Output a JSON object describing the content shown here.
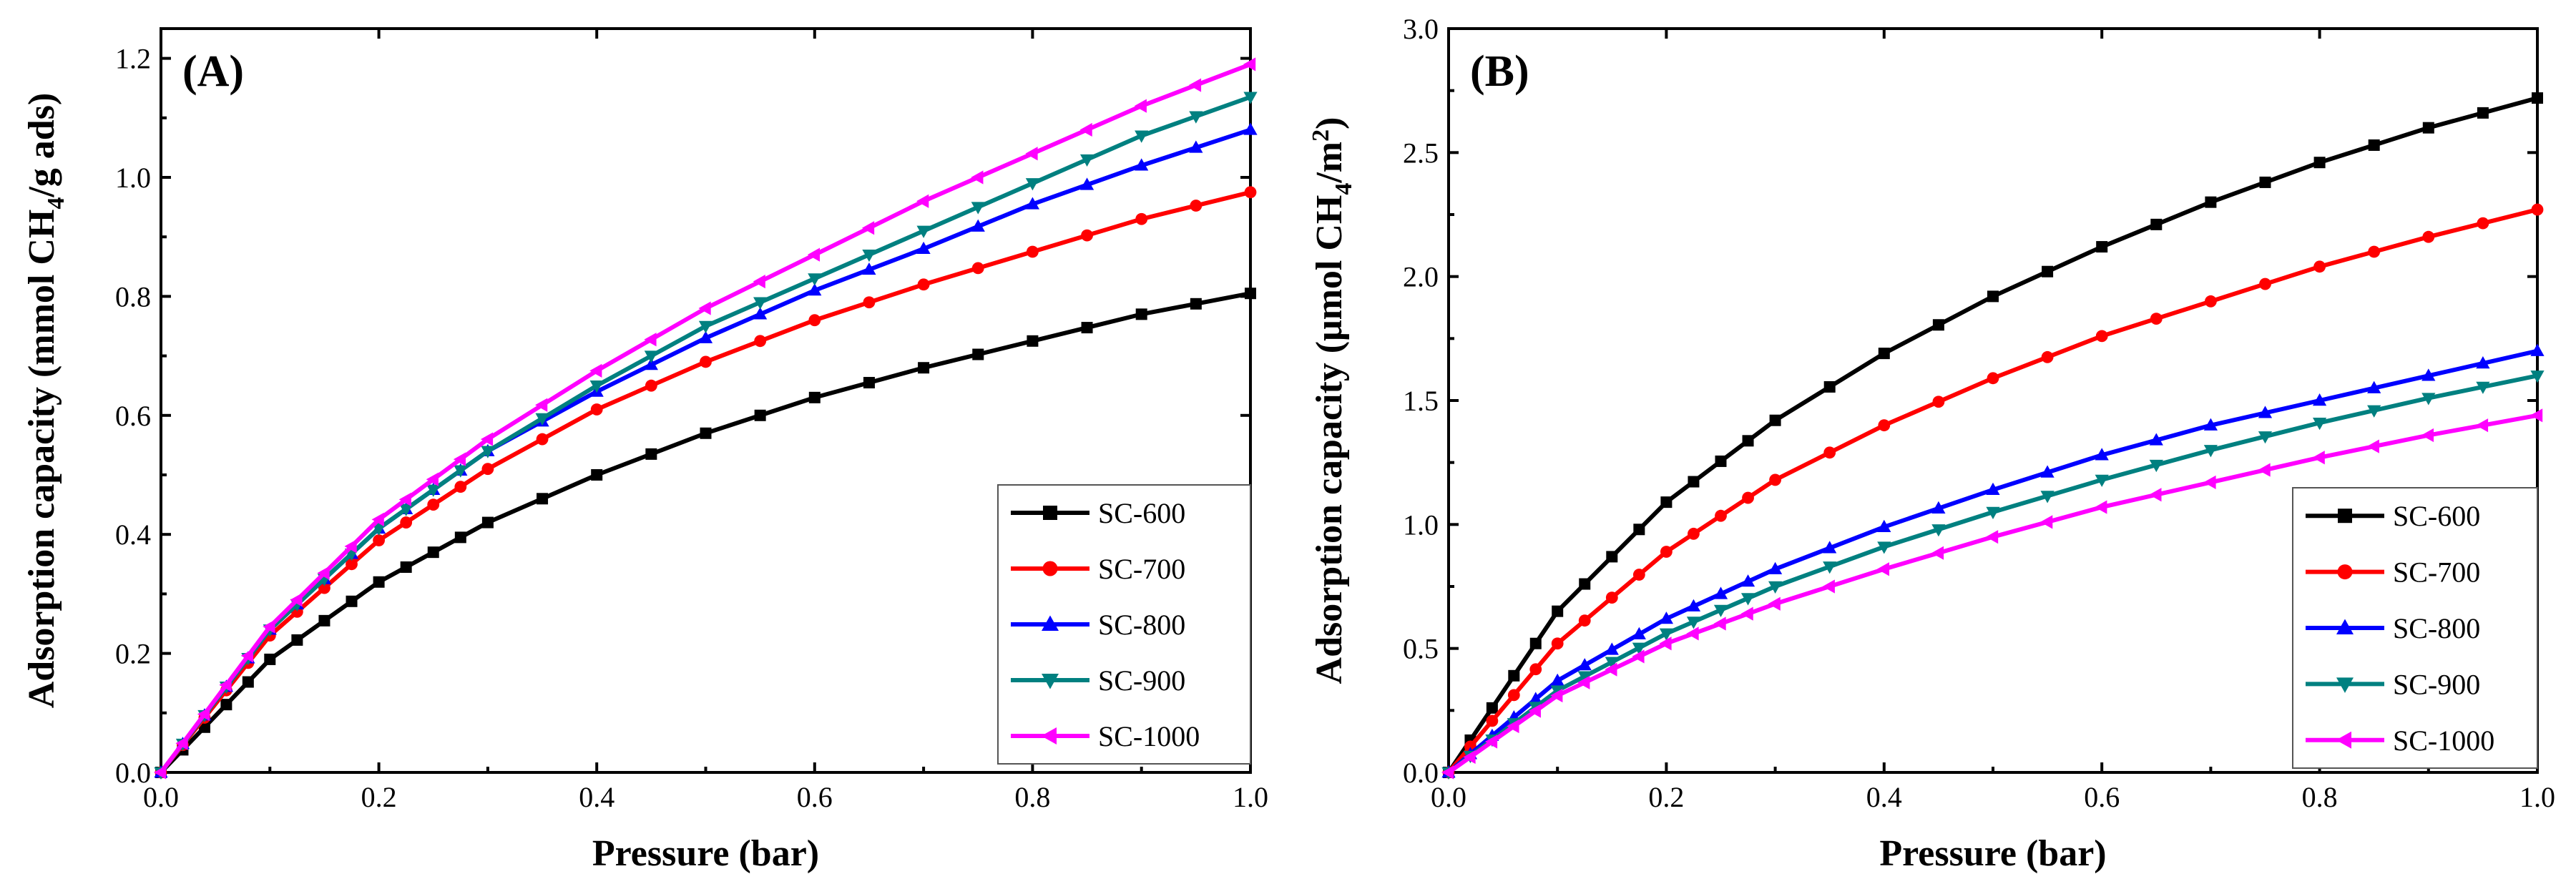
{
  "chart_data": [
    {
      "type": "line",
      "panel_label": "(A)",
      "xlabel": "Pressure (bar)",
      "ylabel": "Adsorption capacity (mmol CH4/g ads)",
      "ylabel_parts": [
        "Adsorption capacity (mmol CH",
        "4",
        "/g ads)"
      ],
      "xlim": [
        0,
        1.0
      ],
      "ylim": [
        0,
        1.25
      ],
      "xticks": [
        "0.0",
        "0.2",
        "0.4",
        "0.6",
        "0.8",
        "1.0"
      ],
      "yticks": [
        "0.0",
        "0.2",
        "0.4",
        "0.6",
        "0.8",
        "1.0",
        "1.2"
      ],
      "grid": false,
      "legend_position": "bottom-right",
      "series": [
        {
          "name": "SC-600",
          "color": "#000000",
          "marker": "square",
          "x": [
            0,
            0.1,
            0.2,
            0.3,
            0.4,
            0.5,
            0.6,
            0.7,
            0.8,
            0.9,
            1.0
          ],
          "y": [
            0,
            0.19,
            0.32,
            0.42,
            0.5,
            0.57,
            0.63,
            0.68,
            0.725,
            0.77,
            0.805
          ]
        },
        {
          "name": "SC-700",
          "color": "#ff0000",
          "marker": "circle",
          "x": [
            0,
            0.1,
            0.2,
            0.3,
            0.4,
            0.5,
            0.6,
            0.7,
            0.8,
            0.9,
            1.0
          ],
          "y": [
            0,
            0.23,
            0.39,
            0.51,
            0.61,
            0.69,
            0.76,
            0.82,
            0.875,
            0.93,
            0.975
          ]
        },
        {
          "name": "SC-800",
          "color": "#0000ff",
          "marker": "triangle-up",
          "x": [
            0,
            0.1,
            0.2,
            0.3,
            0.4,
            0.5,
            0.6,
            0.7,
            0.8,
            0.9,
            1.0
          ],
          "y": [
            0,
            0.24,
            0.41,
            0.54,
            0.64,
            0.73,
            0.81,
            0.88,
            0.955,
            1.02,
            1.08
          ]
        },
        {
          "name": "SC-900",
          "color": "#008080",
          "marker": "triangle-down",
          "x": [
            0,
            0.1,
            0.2,
            0.3,
            0.4,
            0.5,
            0.6,
            0.7,
            0.8,
            0.9,
            1.0
          ],
          "y": [
            0,
            0.24,
            0.41,
            0.54,
            0.65,
            0.75,
            0.83,
            0.91,
            0.99,
            1.07,
            1.135
          ]
        },
        {
          "name": "SC-1000",
          "color": "#ff00ff",
          "marker": "triangle-left",
          "x": [
            0,
            0.1,
            0.2,
            0.3,
            0.4,
            0.5,
            0.6,
            0.7,
            0.8,
            0.9,
            1.0
          ],
          "y": [
            0,
            0.245,
            0.425,
            0.56,
            0.675,
            0.78,
            0.87,
            0.96,
            1.04,
            1.12,
            1.19
          ]
        }
      ]
    },
    {
      "type": "line",
      "panel_label": "(B)",
      "xlabel": "Pressure (bar)",
      "ylabel": "Adsorption capacity (μmol CH4/m2)",
      "ylabel_parts": [
        "Adsorption capacity (μmol CH",
        "4",
        "/m",
        "2",
        ")"
      ],
      "xlim": [
        0,
        1.0
      ],
      "ylim": [
        0,
        3.0
      ],
      "xticks": [
        "0.0",
        "0.2",
        "0.4",
        "0.6",
        "0.8",
        "1.0"
      ],
      "yticks": [
        "0.0",
        "0.5",
        "1.0",
        "1.5",
        "2.0",
        "2.5",
        "3.0"
      ],
      "grid": false,
      "legend_position": "bottom-right",
      "series": [
        {
          "name": "SC-600",
          "color": "#000000",
          "marker": "square",
          "x": [
            0,
            0.1,
            0.2,
            0.3,
            0.4,
            0.5,
            0.6,
            0.7,
            0.8,
            0.9,
            1.0
          ],
          "y": [
            0,
            0.65,
            1.09,
            1.42,
            1.69,
            1.92,
            2.12,
            2.3,
            2.46,
            2.6,
            2.72
          ]
        },
        {
          "name": "SC-700",
          "color": "#ff0000",
          "marker": "circle",
          "x": [
            0,
            0.1,
            0.2,
            0.3,
            0.4,
            0.5,
            0.6,
            0.7,
            0.8,
            0.9,
            1.0
          ],
          "y": [
            0,
            0.52,
            0.89,
            1.18,
            1.4,
            1.59,
            1.76,
            1.9,
            2.04,
            2.16,
            2.27
          ]
        },
        {
          "name": "SC-800",
          "color": "#0000ff",
          "marker": "triangle-up",
          "x": [
            0,
            0.1,
            0.2,
            0.3,
            0.4,
            0.5,
            0.6,
            0.7,
            0.8,
            0.9,
            1.0
          ],
          "y": [
            0,
            0.37,
            0.62,
            0.82,
            0.99,
            1.14,
            1.28,
            1.4,
            1.5,
            1.6,
            1.7
          ]
        },
        {
          "name": "SC-900",
          "color": "#008080",
          "marker": "triangle-down",
          "x": [
            0,
            0.1,
            0.2,
            0.3,
            0.4,
            0.5,
            0.6,
            0.7,
            0.8,
            0.9,
            1.0
          ],
          "y": [
            0,
            0.33,
            0.56,
            0.75,
            0.91,
            1.05,
            1.18,
            1.3,
            1.41,
            1.51,
            1.6
          ]
        },
        {
          "name": "SC-1000",
          "color": "#ff00ff",
          "marker": "triangle-left",
          "x": [
            0,
            0.1,
            0.2,
            0.3,
            0.4,
            0.5,
            0.6,
            0.7,
            0.8,
            0.9,
            1.0
          ],
          "y": [
            0,
            0.31,
            0.52,
            0.68,
            0.82,
            0.95,
            1.07,
            1.17,
            1.27,
            1.36,
            1.44
          ]
        }
      ]
    }
  ]
}
